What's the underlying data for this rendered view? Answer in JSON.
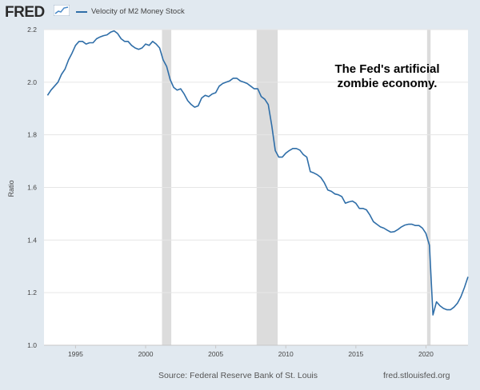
{
  "header": {
    "logo_text": "FRED",
    "legend_label": "Velocity of M2 Money Stock",
    "series_color": "#2f6ea8"
  },
  "footer": {
    "source": "Source: Federal Reserve Bank of St. Louis",
    "url": "fred.stlouisfed.org"
  },
  "chart_data": {
    "type": "line",
    "title": "Velocity of M2 Money Stock",
    "xlabel": "",
    "ylabel": "Ratio",
    "xlim": [
      1992.75,
      2023.0
    ],
    "ylim": [
      1.0,
      2.2
    ],
    "grid": true,
    "x_ticks": [
      1995,
      2000,
      2005,
      2010,
      2015,
      2020
    ],
    "x_tick_labels": [
      "1995",
      "2000",
      "2005",
      "2010",
      "2015",
      "2020"
    ],
    "y_ticks": [
      1.0,
      1.2,
      1.4,
      1.6,
      1.8,
      2.0,
      2.2
    ],
    "y_tick_labels": [
      "1.0",
      "1.2",
      "1.4",
      "1.6",
      "1.8",
      "2.0",
      "2.2"
    ],
    "recessions": [
      {
        "start": 2001.17,
        "end": 2001.83
      },
      {
        "start": 2007.92,
        "end": 2009.42
      },
      {
        "start": 2020.08,
        "end": 2020.33
      }
    ],
    "annotation": [
      "The Fed's artificial",
      "zombie economy."
    ],
    "series": [
      {
        "name": "Velocity of M2 Money Stock",
        "color": "#2f6ea8",
        "points": [
          [
            1993.0,
            1.95
          ],
          [
            1993.25,
            1.97
          ],
          [
            1993.5,
            1.985
          ],
          [
            1993.75,
            2.0
          ],
          [
            1994.0,
            2.03
          ],
          [
            1994.25,
            2.05
          ],
          [
            1994.5,
            2.085
          ],
          [
            1994.75,
            2.11
          ],
          [
            1995.0,
            2.14
          ],
          [
            1995.25,
            2.155
          ],
          [
            1995.5,
            2.155
          ],
          [
            1995.75,
            2.145
          ],
          [
            1996.0,
            2.15
          ],
          [
            1996.25,
            2.15
          ],
          [
            1996.5,
            2.165
          ],
          [
            1996.75,
            2.172
          ],
          [
            1997.0,
            2.177
          ],
          [
            1997.25,
            2.18
          ],
          [
            1997.5,
            2.19
          ],
          [
            1997.75,
            2.195
          ],
          [
            1998.0,
            2.185
          ],
          [
            1998.25,
            2.165
          ],
          [
            1998.5,
            2.155
          ],
          [
            1998.75,
            2.155
          ],
          [
            1999.0,
            2.14
          ],
          [
            1999.25,
            2.13
          ],
          [
            1999.5,
            2.125
          ],
          [
            1999.75,
            2.13
          ],
          [
            2000.0,
            2.145
          ],
          [
            2000.25,
            2.14
          ],
          [
            2000.5,
            2.155
          ],
          [
            2000.75,
            2.145
          ],
          [
            2001.0,
            2.13
          ],
          [
            2001.25,
            2.085
          ],
          [
            2001.5,
            2.06
          ],
          [
            2001.75,
            2.01
          ],
          [
            2002.0,
            1.98
          ],
          [
            2002.25,
            1.97
          ],
          [
            2002.5,
            1.975
          ],
          [
            2002.75,
            1.955
          ],
          [
            2003.0,
            1.93
          ],
          [
            2003.25,
            1.915
          ],
          [
            2003.5,
            1.905
          ],
          [
            2003.75,
            1.91
          ],
          [
            2004.0,
            1.94
          ],
          [
            2004.25,
            1.95
          ],
          [
            2004.5,
            1.945
          ],
          [
            2004.75,
            1.955
          ],
          [
            2005.0,
            1.96
          ],
          [
            2005.25,
            1.985
          ],
          [
            2005.5,
            1.995
          ],
          [
            2005.75,
            2.0
          ],
          [
            2006.0,
            2.005
          ],
          [
            2006.25,
            2.015
          ],
          [
            2006.5,
            2.015
          ],
          [
            2006.75,
            2.005
          ],
          [
            2007.0,
            2.0
          ],
          [
            2007.25,
            1.995
          ],
          [
            2007.5,
            1.985
          ],
          [
            2007.75,
            1.975
          ],
          [
            2008.0,
            1.975
          ],
          [
            2008.25,
            1.945
          ],
          [
            2008.5,
            1.935
          ],
          [
            2008.75,
            1.915
          ],
          [
            2009.0,
            1.835
          ],
          [
            2009.25,
            1.74
          ],
          [
            2009.5,
            1.715
          ],
          [
            2009.75,
            1.715
          ],
          [
            2010.0,
            1.73
          ],
          [
            2010.25,
            1.74
          ],
          [
            2010.5,
            1.748
          ],
          [
            2010.75,
            1.748
          ],
          [
            2011.0,
            1.742
          ],
          [
            2011.25,
            1.725
          ],
          [
            2011.5,
            1.715
          ],
          [
            2011.75,
            1.66
          ],
          [
            2012.0,
            1.655
          ],
          [
            2012.25,
            1.648
          ],
          [
            2012.5,
            1.638
          ],
          [
            2012.75,
            1.618
          ],
          [
            2013.0,
            1.59
          ],
          [
            2013.25,
            1.585
          ],
          [
            2013.5,
            1.575
          ],
          [
            2013.75,
            1.572
          ],
          [
            2014.0,
            1.565
          ],
          [
            2014.25,
            1.54
          ],
          [
            2014.5,
            1.545
          ],
          [
            2014.75,
            1.548
          ],
          [
            2015.0,
            1.54
          ],
          [
            2015.25,
            1.52
          ],
          [
            2015.5,
            1.52
          ],
          [
            2015.75,
            1.515
          ],
          [
            2016.0,
            1.495
          ],
          [
            2016.25,
            1.47
          ],
          [
            2016.5,
            1.46
          ],
          [
            2016.75,
            1.45
          ],
          [
            2017.0,
            1.445
          ],
          [
            2017.25,
            1.437
          ],
          [
            2017.5,
            1.43
          ],
          [
            2017.75,
            1.432
          ],
          [
            2018.0,
            1.44
          ],
          [
            2018.25,
            1.45
          ],
          [
            2018.5,
            1.457
          ],
          [
            2018.75,
            1.46
          ],
          [
            2019.0,
            1.46
          ],
          [
            2019.25,
            1.455
          ],
          [
            2019.5,
            1.455
          ],
          [
            2019.75,
            1.445
          ],
          [
            2020.0,
            1.425
          ],
          [
            2020.25,
            1.38
          ],
          [
            2020.5,
            1.115
          ],
          [
            2020.75,
            1.165
          ],
          [
            2021.0,
            1.15
          ],
          [
            2021.25,
            1.14
          ],
          [
            2021.5,
            1.135
          ],
          [
            2021.75,
            1.135
          ],
          [
            2022.0,
            1.145
          ],
          [
            2022.25,
            1.16
          ],
          [
            2022.5,
            1.185
          ],
          [
            2022.75,
            1.22
          ],
          [
            2023.0,
            1.26
          ]
        ]
      }
    ]
  }
}
